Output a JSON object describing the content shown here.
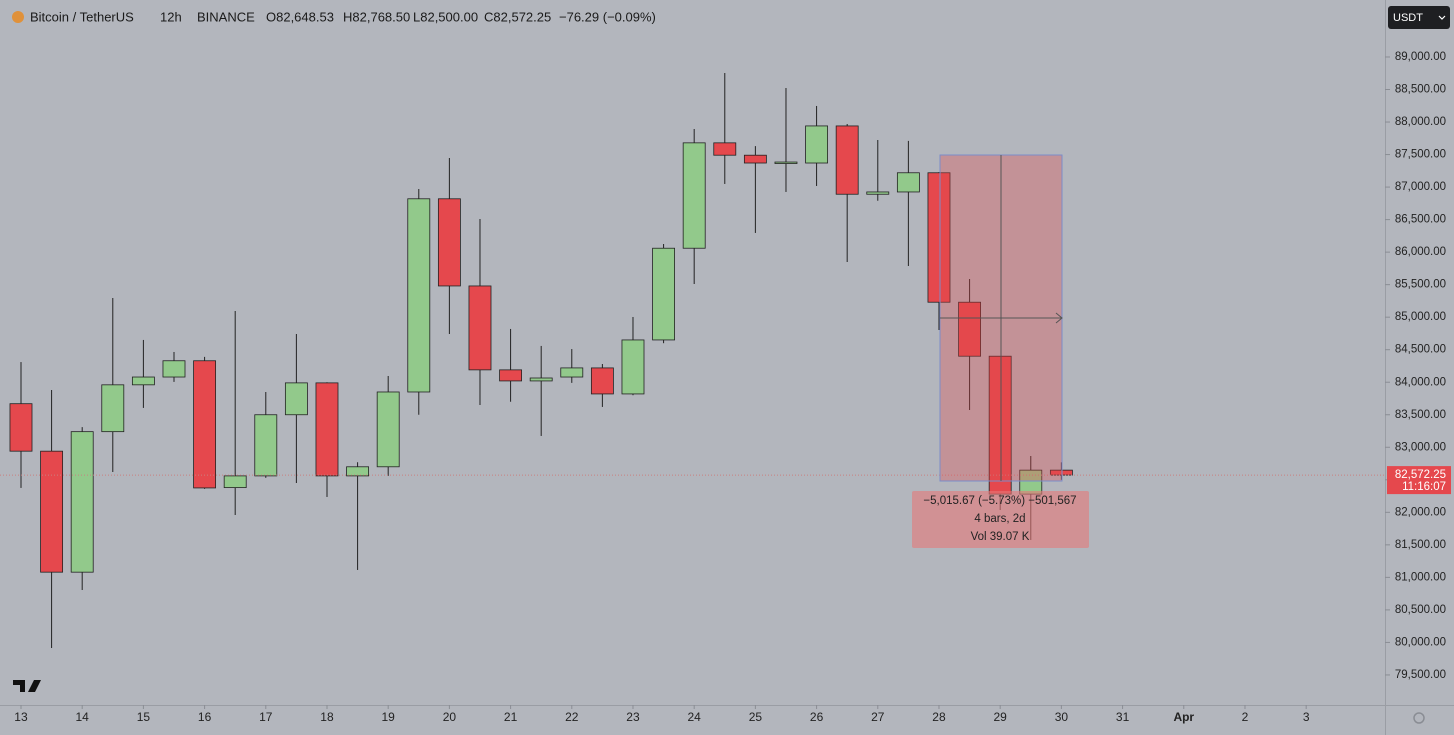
{
  "chart_data": {
    "type": "candlestick",
    "title": "Bitcoin / TetherUS",
    "interval": "12h",
    "exchange": "BINANCE",
    "ohlc_legend": [
      "O82,648.53",
      "H82,768.50",
      "L82,500.00",
      "C82,572.25",
      "−76.29 (−0.09%)"
    ],
    "currency": "USDT",
    "up_color": "#92c98b",
    "down_color": "#e5484d",
    "x": [
      13,
      13.5,
      14,
      14.5,
      15,
      15.5,
      16,
      16.5,
      17,
      17.5,
      18,
      18.5,
      19,
      19.5,
      20,
      20.5,
      21,
      21.5,
      22,
      22.5,
      23,
      23.5,
      24,
      24.5,
      25,
      25.5,
      26,
      26.5,
      27,
      27.5,
      28,
      28.5,
      29,
      29.5,
      30
    ],
    "open": [
      83670,
      82940,
      81080,
      83240,
      83960,
      84080,
      84330,
      82380,
      82560,
      83500,
      83990,
      82560,
      82700,
      83850,
      86820,
      85480,
      84190,
      84020,
      84080,
      84220,
      83820,
      84650,
      86060,
      87680,
      87490,
      87370,
      87370,
      87940,
      86890,
      86925,
      87220,
      85230,
      84400,
      82280,
      82648.53
    ],
    "high": [
      84310,
      83880,
      83310,
      85295,
      84650,
      84465,
      84390,
      85095,
      83850,
      84742,
      84000,
      82770,
      84096,
      86971,
      87447,
      86510,
      84819,
      84558,
      84510,
      84280,
      85003,
      86125,
      87893,
      88754,
      87630,
      88523,
      88247,
      87970,
      87724,
      87710,
      87230,
      85587,
      84400,
      82866,
      82768.5
    ],
    "low": [
      82375,
      79915,
      80806,
      82620,
      83605,
      84005,
      82360,
      81959,
      82530,
      82450,
      82236,
      81114,
      82560,
      83500,
      84742,
      83650,
      83700,
      83174,
      83990,
      83620,
      83800,
      84600,
      85511,
      87048,
      86295,
      86925,
      87017,
      85849,
      86790,
      85787,
      84803,
      83573,
      82036,
      81575,
      82500
    ],
    "close": [
      82940,
      81080,
      83240,
      83960,
      84080,
      84330,
      82375,
      82560,
      83500,
      83990,
      82560,
      82700,
      83850,
      86820,
      85480,
      84190,
      84020,
      84065,
      84220,
      83820,
      84650,
      86060,
      87680,
      87490,
      87370,
      87385,
      87940,
      86890,
      86925,
      87220,
      85230,
      84400,
      82280,
      82648.53,
      82572.25
    ],
    "xlim": [
      12.657,
      35.288
    ],
    "xticks": [
      13,
      14,
      15,
      16,
      17,
      18,
      19,
      20,
      21,
      22,
      23,
      24,
      25,
      26,
      27,
      28,
      29,
      30,
      31,
      {
        "value": 32,
        "label": "Apr"
      },
      {
        "value": 33,
        "label": "2"
      },
      {
        "value": 34,
        "label": "3"
      }
    ],
    "ylim": [
      79038,
      89876
    ],
    "yticks": [
      {
        "value": 79500,
        "label": "79,500.00"
      },
      {
        "value": 80000,
        "label": "80,000.00"
      },
      {
        "value": 80500,
        "label": "80,500.00"
      },
      {
        "value": 81000,
        "label": "81,000.00"
      },
      {
        "value": 81500,
        "label": "81,500.00"
      },
      {
        "value": 82000,
        "label": "82,000.00"
      },
      {
        "value": 82500,
        "label": "82,500.00"
      },
      {
        "value": 83000,
        "label": "83,000.00"
      },
      {
        "value": 83500,
        "label": "83,500.00"
      },
      {
        "value": 84000,
        "label": "84,000.00"
      },
      {
        "value": 84500,
        "label": "84,500.00"
      },
      {
        "value": 85000,
        "label": "85,000.00"
      },
      {
        "value": 85500,
        "label": "85,500.00"
      },
      {
        "value": 86000,
        "label": "86,000.00"
      },
      {
        "value": 86500,
        "label": "86,500.00"
      },
      {
        "value": 87000,
        "label": "87,000.00"
      },
      {
        "value": 87500,
        "label": "87,500.00"
      },
      {
        "value": 88000,
        "label": "88,000.00"
      },
      {
        "value": 88500,
        "label": "88,500.00"
      },
      {
        "value": 89000,
        "label": "89,000.00"
      }
    ],
    "price_tag": {
      "value": 82572.25,
      "label": "82,572.25",
      "countdown": "11:16:07"
    },
    "measure": {
      "change": "−5,015.67 (−5.73%) −501,567",
      "bars": "4 bars, 2d",
      "volume": "Vol 39.07 K"
    }
  }
}
